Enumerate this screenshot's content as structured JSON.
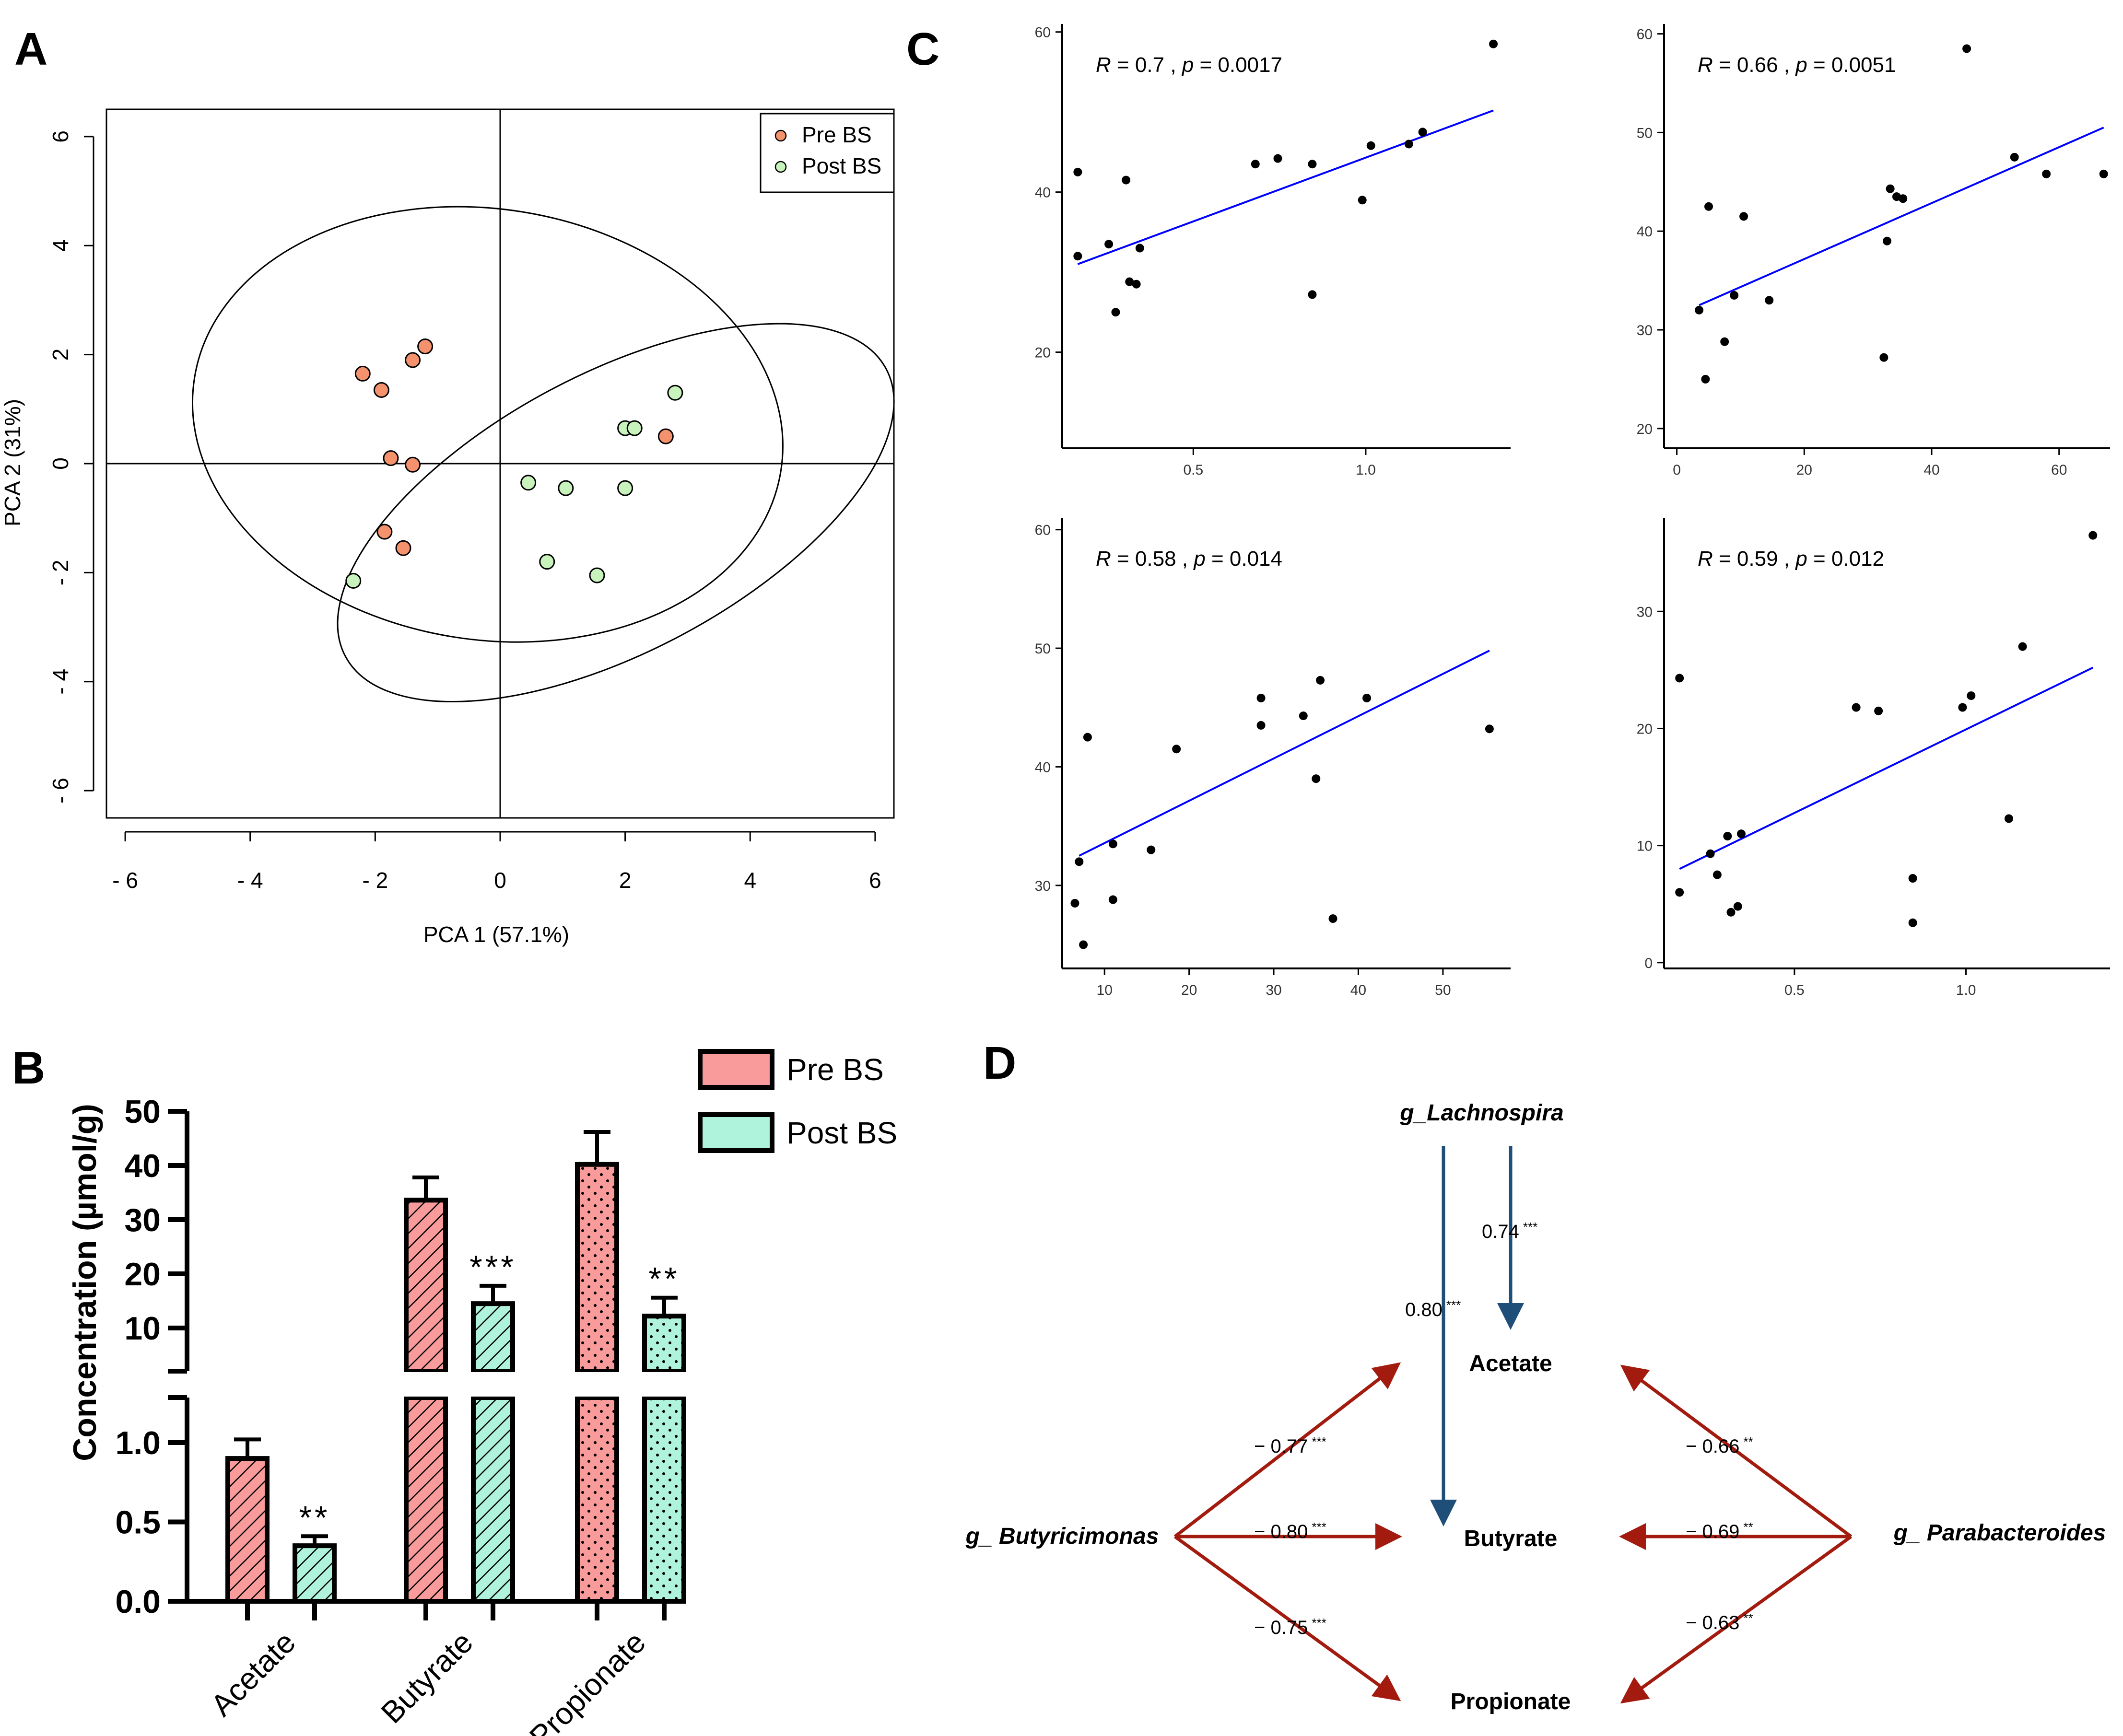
{
  "panel_letters": {
    "a": "A",
    "b": "B",
    "c": "C",
    "d": "D"
  },
  "colors": {
    "pre": "#f5926e",
    "post": "#c9f3bd",
    "bar_pre": "#f99b9b",
    "bar_post": "#aff3dc",
    "fit_line": "#0000ff",
    "blue_arrow": "#1f4e79",
    "red_arrow": "#a31b0e"
  },
  "chart_data": [
    {
      "id": "pca",
      "type": "scatter",
      "xlabel": "PCA 1 (57.1%)",
      "ylabel": "PCA 2 (31%)",
      "xlim": [
        -6.3,
        6.3
      ],
      "ylim": [
        -6.5,
        6.5
      ],
      "x_ticks": [
        -6,
        -4,
        -2,
        0,
        2,
        4,
        6
      ],
      "y_ticks": [
        -6,
        -4,
        -2,
        0,
        2,
        4,
        6
      ],
      "tick_labels_x": [
        "- 6",
        "- 4",
        "- 2",
        "0",
        "2",
        "4",
        "6"
      ],
      "tick_labels_y": [
        "- 6",
        "- 4",
        "- 2",
        "0",
        "2",
        "4",
        "6"
      ],
      "legend": [
        "Pre BS",
        "Post BS"
      ],
      "legend_position": "top-right",
      "series": [
        {
          "name": "Pre BS",
          "points": [
            [
              -2.2,
              1.65
            ],
            [
              -1.9,
              1.35
            ],
            [
              -1.4,
              1.9
            ],
            [
              -1.2,
              2.15
            ],
            [
              -1.75,
              0.1
            ],
            [
              -1.4,
              -0.02
            ],
            [
              -1.85,
              -1.25
            ],
            [
              -1.55,
              -1.55
            ],
            [
              2.65,
              0.5
            ]
          ]
        },
        {
          "name": "Post BS",
          "points": [
            [
              -2.35,
              -2.15
            ],
            [
              0.45,
              -0.35
            ],
            [
              1.05,
              -0.45
            ],
            [
              2.0,
              0.65
            ],
            [
              2.15,
              0.65
            ],
            [
              2.8,
              1.3
            ],
            [
              2.0,
              -0.45
            ],
            [
              0.75,
              -1.8
            ],
            [
              1.55,
              -2.05
            ]
          ]
        }
      ],
      "ellipses": [
        {
          "center": [
            -0.2,
            0.72
          ],
          "rx": 4.75,
          "ry": 3.95,
          "angle_deg": -9
        },
        {
          "center": [
            1.85,
            -0.9
          ],
          "rx": 4.9,
          "ry": 2.55,
          "angle_deg": 28
        }
      ]
    },
    {
      "id": "scfa",
      "type": "bar",
      "ylabel": "Concentration (µmol/g)",
      "categories": [
        "Acetate",
        "Butyrate",
        "Propionate"
      ],
      "legend": [
        "Pre BS",
        "Post BS"
      ],
      "legend_position": "top-right",
      "y_ticks_upper": [
        10,
        20,
        30,
        40,
        50
      ],
      "tick_labels_upper": [
        "10",
        "20",
        "30",
        "40",
        "50"
      ],
      "y_ticks_lower": [
        0.0,
        0.5,
        1.0
      ],
      "tick_labels_lower": [
        "0.0",
        "0.5",
        "1.0"
      ],
      "broken_axis": true,
      "series": [
        {
          "name": "Pre BS",
          "values": [
            0.9,
            33.6,
            40.2
          ],
          "errors": [
            0.12,
            4.2,
            6.0
          ],
          "pattern": [
            "hatch",
            "hatch",
            "dots"
          ]
        },
        {
          "name": "Post BS",
          "values": [
            0.35,
            14.5,
            12.2
          ],
          "errors": [
            0.06,
            3.3,
            3.4
          ],
          "pattern": [
            "hatch",
            "hatch",
            "dots"
          ]
        }
      ],
      "significance": [
        "**",
        "***",
        "**"
      ]
    },
    {
      "id": "corr1",
      "type": "scatter",
      "xlim": [
        0.12,
        1.42
      ],
      "ylim": [
        8,
        61
      ],
      "x_ticks": [
        0.5,
        1.0
      ],
      "tick_labels_x": [
        "0.5",
        "1.0"
      ],
      "y_ticks": [
        20,
        40,
        60
      ],
      "tick_labels_y": [
        "20",
        "40",
        "60"
      ],
      "annotation": {
        "r": "R",
        "r_val": " = 0.7 , ",
        "p": "p",
        "p_val": " = 0.0017"
      },
      "fit": [
        [
          0.165,
          31.0
        ],
        [
          1.37,
          50.2
        ]
      ],
      "points": [
        [
          0.165,
          42.5
        ],
        [
          0.165,
          32.0
        ],
        [
          0.255,
          33.5
        ],
        [
          0.275,
          25.0
        ],
        [
          0.305,
          41.5
        ],
        [
          0.315,
          28.8
        ],
        [
          0.335,
          28.5
        ],
        [
          0.345,
          33.0
        ],
        [
          0.68,
          43.5
        ],
        [
          0.745,
          44.2
        ],
        [
          0.845,
          43.5
        ],
        [
          0.845,
          27.2
        ],
        [
          0.99,
          39.0
        ],
        [
          1.015,
          45.8
        ],
        [
          1.125,
          46.0
        ],
        [
          1.165,
          47.5
        ],
        [
          1.37,
          58.5
        ]
      ]
    },
    {
      "id": "corr2",
      "type": "scatter",
      "xlim": [
        -2,
        68
      ],
      "ylim": [
        18,
        61
      ],
      "x_ticks": [
        0,
        20,
        40,
        60
      ],
      "tick_labels_x": [
        "0",
        "20",
        "40",
        "60"
      ],
      "y_ticks": [
        20,
        30,
        40,
        50,
        60
      ],
      "tick_labels_y": [
        "20",
        "30",
        "40",
        "50",
        "60"
      ],
      "annotation": {
        "r": "R",
        "r_val": " = 0.66 , ",
        "p": "p",
        "p_val": " = 0.0051"
      },
      "fit": [
        [
          3.5,
          32.5
        ],
        [
          67,
          50.5
        ]
      ],
      "points": [
        [
          3.5,
          32.0
        ],
        [
          4.5,
          25.0
        ],
        [
          5.0,
          42.5
        ],
        [
          7.5,
          28.8
        ],
        [
          9.0,
          33.5
        ],
        [
          10.5,
          41.5
        ],
        [
          14.5,
          33.0
        ],
        [
          32.5,
          27.2
        ],
        [
          33.0,
          39.0
        ],
        [
          33.5,
          44.3
        ],
        [
          34.5,
          43.5
        ],
        [
          35.5,
          43.3
        ],
        [
          45.5,
          58.5
        ],
        [
          53.0,
          47.5
        ],
        [
          58.0,
          45.8
        ],
        [
          67.0,
          45.8
        ]
      ]
    },
    {
      "id": "corr3",
      "type": "scatter",
      "xlim": [
        5,
        58
      ],
      "ylim": [
        23,
        61
      ],
      "x_ticks": [
        10,
        20,
        30,
        40,
        50
      ],
      "tick_labels_x": [
        "10",
        "20",
        "30",
        "40",
        "50"
      ],
      "y_ticks": [
        30,
        40,
        50,
        60
      ],
      "tick_labels_y": [
        "30",
        "40",
        "50",
        "60"
      ],
      "annotation": {
        "r": "R",
        "r_val": " = 0.58 , ",
        "p": "p",
        "p_val": " = 0.014"
      },
      "fit": [
        [
          7.0,
          32.5
        ],
        [
          55.5,
          49.8
        ]
      ],
      "points": [
        [
          6.5,
          28.5
        ],
        [
          7.0,
          32.0
        ],
        [
          7.5,
          25.0
        ],
        [
          8.0,
          42.5
        ],
        [
          11.0,
          33.5
        ],
        [
          11.0,
          28.8
        ],
        [
          15.5,
          33.0
        ],
        [
          18.5,
          41.5
        ],
        [
          28.5,
          45.8
        ],
        [
          28.5,
          43.5
        ],
        [
          33.5,
          44.3
        ],
        [
          35.0,
          39.0
        ],
        [
          35.5,
          47.3
        ],
        [
          37.0,
          27.2
        ],
        [
          41.0,
          45.8
        ],
        [
          55.5,
          43.2
        ]
      ]
    },
    {
      "id": "corr4",
      "type": "scatter",
      "xlim": [
        0.12,
        1.42
      ],
      "ylim": [
        -0.5,
        38
      ],
      "x_ticks": [
        0.5,
        1.0
      ],
      "tick_labels_x": [
        "0.5",
        "1.0"
      ],
      "y_ticks": [
        0,
        10,
        20,
        30
      ],
      "tick_labels_y": [
        "0",
        "10",
        "20",
        "30"
      ],
      "annotation": {
        "r": "R",
        "r_val": " = 0.59 , ",
        "p": "p",
        "p_val": " = 0.012"
      },
      "fit": [
        [
          0.165,
          8.0
        ],
        [
          1.37,
          25.2
        ]
      ],
      "points": [
        [
          0.165,
          24.3
        ],
        [
          0.165,
          6.0
        ],
        [
          0.255,
          9.3
        ],
        [
          0.275,
          7.5
        ],
        [
          0.305,
          10.8
        ],
        [
          0.315,
          4.3
        ],
        [
          0.335,
          4.8
        ],
        [
          0.345,
          11.0
        ],
        [
          0.68,
          21.8
        ],
        [
          0.745,
          21.5
        ],
        [
          0.845,
          7.2
        ],
        [
          0.845,
          3.4
        ],
        [
          0.99,
          21.8
        ],
        [
          1.015,
          22.8
        ],
        [
          1.125,
          12.3
        ],
        [
          1.165,
          27.0
        ],
        [
          1.37,
          36.5
        ]
      ]
    }
  ],
  "network": {
    "nodes": {
      "lachnospira": "g_Lachnospira",
      "butyricimonas": "g_ Butyricimonas",
      "parabacteroides": "g_ Parabacteroides",
      "acetate": "Acetate",
      "butyrate": "Butyrate",
      "propionate": "Propionate"
    },
    "edges": [
      {
        "id": "lach_acetate",
        "value": "0.74",
        "stars": "***"
      },
      {
        "id": "lach_butyrate",
        "value": "0.80",
        "stars": "***"
      },
      {
        "id": "buty_acetate",
        "value": "− 0.77",
        "stars": "***"
      },
      {
        "id": "buty_butyrate",
        "value": "− 0.80",
        "stars": "***"
      },
      {
        "id": "buty_propionate",
        "value": "− 0.75",
        "stars": "***"
      },
      {
        "id": "para_acetate",
        "value": "− 0.66",
        "stars": "**"
      },
      {
        "id": "para_butyrate",
        "value": "− 0.69",
        "stars": "**"
      },
      {
        "id": "para_propionate",
        "value": "− 0.63",
        "stars": "**"
      }
    ]
  }
}
